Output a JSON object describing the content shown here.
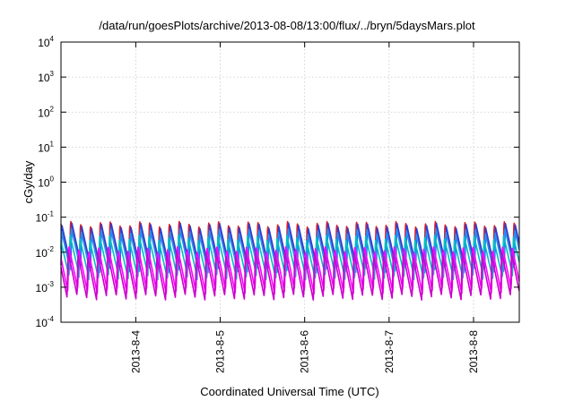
{
  "chart_data": {
    "type": "line",
    "title": "/data/run/goesPlots/archive/2013-08-08/13:00/flux/../bryn/5daysMars.plot",
    "xlabel": "Coordinated Universal Time (UTC)",
    "ylabel": "cGy/day",
    "yscale": "log",
    "ylim": [
      0.0001,
      10000
    ],
    "xlim": [
      "2013-08-03T02:45",
      "2013-08-08T13:00"
    ],
    "grid": true,
    "legend": "none",
    "x_ticks": [
      {
        "label": "2013-8-4",
        "value": "2013-08-04T00:00"
      },
      {
        "label": "2013-8-5",
        "value": "2013-08-05T00:00"
      },
      {
        "label": "2013-8-6",
        "value": "2013-08-06T00:00"
      },
      {
        "label": "2013-8-7",
        "value": "2013-08-07T00:00"
      },
      {
        "label": "2013-8-8",
        "value": "2013-08-08T00:00"
      }
    ],
    "y_ticks": [
      {
        "base": "10",
        "exp": "4",
        "value": 10000
      },
      {
        "base": "10",
        "exp": "3",
        "value": 1000
      },
      {
        "base": "10",
        "exp": "2",
        "value": 100
      },
      {
        "base": "10",
        "exp": "1",
        "value": 10
      },
      {
        "base": "10",
        "exp": "0",
        "value": 1
      },
      {
        "base": "10",
        "exp": "-1",
        "value": 0.1
      },
      {
        "base": "10",
        "exp": "-2",
        "value": 0.01
      },
      {
        "base": "10",
        "exp": "-3",
        "value": 0.001
      },
      {
        "base": "10",
        "exp": "-4",
        "value": 0.0001
      }
    ],
    "cycle_period_hours": 2.8,
    "series": [
      {
        "color": "#e41a1c",
        "peak": 0.068,
        "trough": 0.0055,
        "phase_hours": 0.35
      },
      {
        "color": "#2b3fd6",
        "peak": 0.058,
        "trough": 0.0042,
        "phase_hours": 0.0
      },
      {
        "color": "#1e90ff",
        "peak": 0.042,
        "trough": 0.003,
        "phase_hours": 0.15
      },
      {
        "color": "#00bfbf",
        "peak": 0.026,
        "trough": 0.002,
        "phase_hours": 0.5
      },
      {
        "color": "#ff00ff",
        "peak": 0.013,
        "trough": 0.00075,
        "phase_hours": 0.85
      },
      {
        "color": "#cc00cc",
        "peak": 0.009,
        "trough": 0.0005,
        "phase_hours": 1.05
      }
    ]
  }
}
